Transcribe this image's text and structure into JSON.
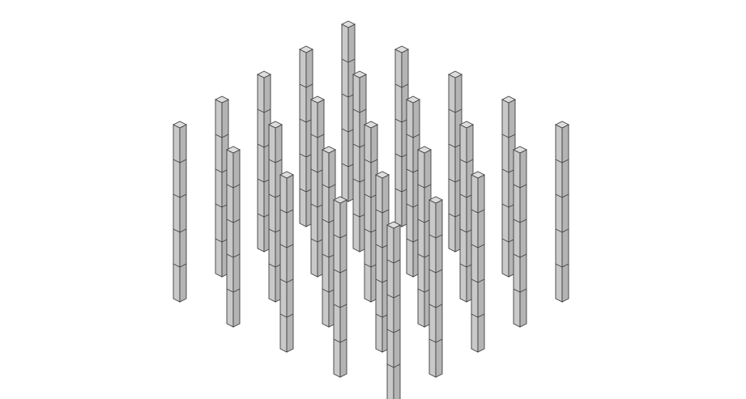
{
  "figure": {
    "type": "isometric-column-grid",
    "grid": {
      "rows": 5,
      "cols": 5
    },
    "column": {
      "segments": 5,
      "face_color_left": "#c9c9c9",
      "face_color_right": "#b4b4b4",
      "top_color": "#dedede",
      "edge_color": "#3f3f3f"
    },
    "background": "#ffffff"
  }
}
